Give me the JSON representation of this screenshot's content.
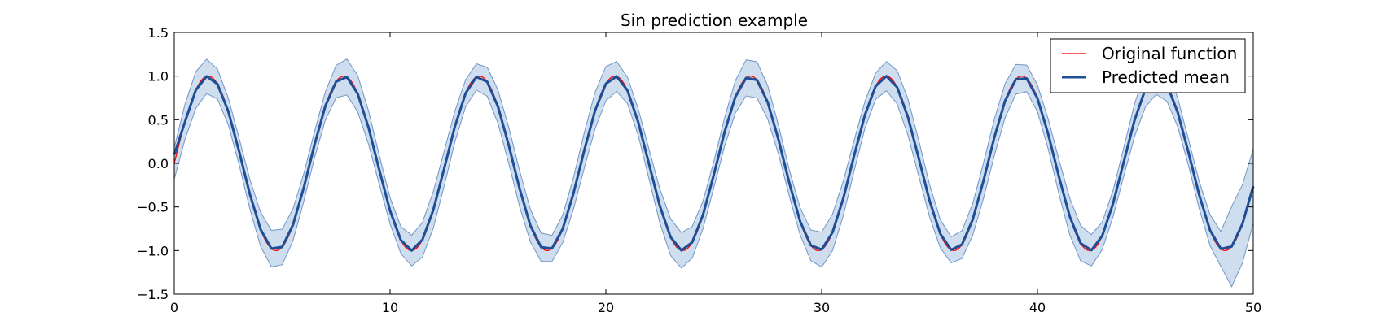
{
  "chart_data": {
    "type": "line",
    "title": "Sin prediction example",
    "xlabel": "",
    "ylabel": "",
    "xlim": [
      0,
      50
    ],
    "ylim": [
      -1.5,
      1.5
    ],
    "x_ticks": [
      0,
      10,
      20,
      30,
      40,
      50
    ],
    "x_tick_labels": [
      "0",
      "10",
      "20",
      "30",
      "40",
      "50"
    ],
    "y_ticks": [
      -1.5,
      -1.0,
      -0.5,
      0.0,
      0.5,
      1.0,
      1.5
    ],
    "y_tick_labels": [
      "−1.5",
      "−1.0",
      "−0.5",
      "0.0",
      "0.5",
      "1.0",
      "1.5"
    ],
    "grid": false,
    "legend": {
      "placement": "top-right"
    },
    "series": [
      {
        "name": "Original function",
        "color": "#ff0000",
        "style": "thin-line",
        "function": "sin(x)",
        "x_range": [
          0,
          50
        ]
      },
      {
        "name": "Predicted mean",
        "color": "#1f4e96",
        "style": "thick-line",
        "x_range": [
          0,
          50
        ],
        "approximation": "sin(x) sampled at about 0.5 intervals",
        "band": {
          "color": "#a8c2e0",
          "edge_color": "#7396c6",
          "half_width_typical": 0.18
        }
      }
    ]
  }
}
